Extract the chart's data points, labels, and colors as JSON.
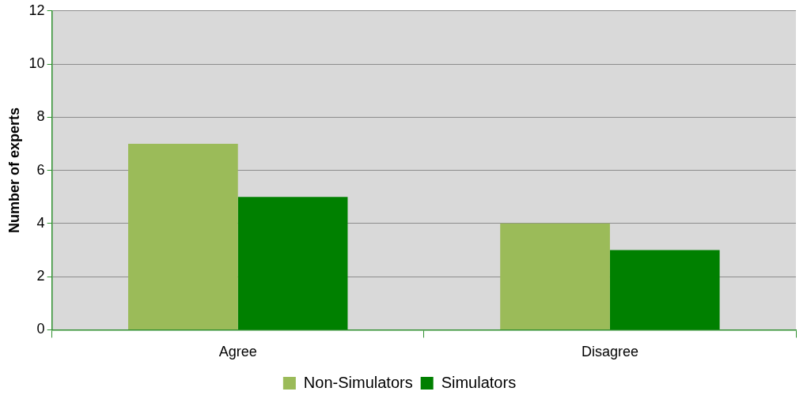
{
  "chart_data": {
    "type": "bar",
    "ylabel": "Number of experts",
    "categories": [
      "Agree",
      "Disagree"
    ],
    "series": [
      {
        "name": "Non-Simulators",
        "color": "#9bbb59",
        "values": [
          7,
          4
        ]
      },
      {
        "name": "Simulators",
        "color": "#008000",
        "values": [
          5,
          3
        ]
      }
    ],
    "ylim": [
      0,
      12
    ],
    "yticks": [
      0,
      2,
      4,
      6,
      8,
      10,
      12
    ],
    "grid": "y",
    "legend": "bottom"
  }
}
